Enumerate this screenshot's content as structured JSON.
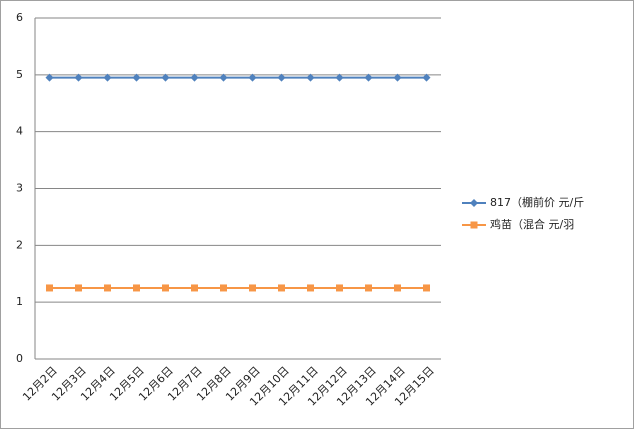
{
  "chart_data": {
    "type": "line",
    "categories": [
      "12月2日",
      "12月3日",
      "12月4日",
      "12月5日",
      "12月6日",
      "12月7日",
      "12月8日",
      "12月9日",
      "12月10日",
      "12月11日",
      "12月12日",
      "12月13日",
      "12月14日",
      "12月15日"
    ],
    "series": [
      {
        "name": "817（棚前价 元/斤",
        "color": "#4f81bd",
        "marker": "diamond",
        "values": [
          4.95,
          4.95,
          4.95,
          4.95,
          4.95,
          4.95,
          4.95,
          4.95,
          4.95,
          4.95,
          4.95,
          4.95,
          4.95,
          4.95
        ]
      },
      {
        "name": "鸡苗（混合 元/羽",
        "color": "#f79646",
        "marker": "square",
        "values": [
          1.25,
          1.25,
          1.25,
          1.25,
          1.25,
          1.25,
          1.25,
          1.25,
          1.25,
          1.25,
          1.25,
          1.25,
          1.25,
          1.25
        ]
      }
    ],
    "ylim": [
      0,
      6
    ],
    "yticks": [
      0,
      1,
      2,
      3,
      4,
      5,
      6
    ],
    "grid": true,
    "legend": "right"
  }
}
